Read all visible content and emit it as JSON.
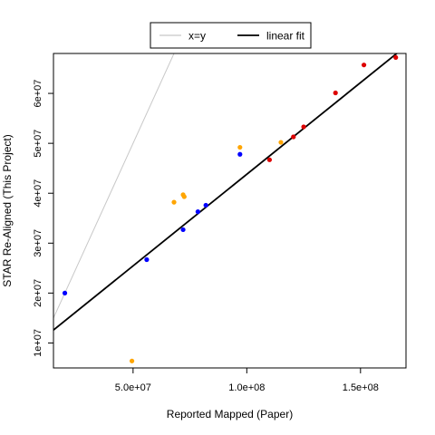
{
  "chart_data": {
    "type": "scatter",
    "title": "",
    "xlabel": "Reported Mapped (Paper)",
    "ylabel": "STAR Re-Aligned (This Project)",
    "xlim": [
      15000000,
      170000000
    ],
    "ylim": [
      5000000,
      68000000
    ],
    "x_ticks": [
      50000000,
      100000000,
      150000000
    ],
    "x_tick_labels": [
      "5.0e+07",
      "1.0e+08",
      "1.5e+08"
    ],
    "y_ticks": [
      10000000,
      20000000,
      30000000,
      40000000,
      50000000,
      60000000
    ],
    "y_tick_labels": [
      "1e+07",
      "2e+07",
      "3e+07",
      "4e+07",
      "5e+07",
      "6e+07"
    ],
    "grid": false,
    "legend": {
      "placement": "top-center",
      "entries": [
        {
          "label": "x=y",
          "color": "#c8c8c8"
        },
        {
          "label": "linear fit",
          "color": "#000000"
        }
      ]
    },
    "lines": [
      {
        "name": "x=y",
        "color": "#c8c8c8",
        "x": [
          15000000,
          69000000
        ],
        "y": [
          15000000,
          69000000
        ]
      },
      {
        "name": "linear fit",
        "color": "#000000",
        "x": [
          15000000,
          170000000
        ],
        "y": [
          12600000,
          69500000
        ]
      }
    ],
    "series": [
      {
        "color": "#0000ff",
        "x": [
          20000000,
          56000000,
          72000000,
          78500000,
          82000000,
          97000000
        ],
        "y": [
          20000000,
          26700000,
          32700000,
          36300000,
          37600000,
          47800000
        ]
      },
      {
        "color": "#ffa500",
        "x": [
          49500000,
          68000000,
          72000000,
          72500000,
          97000000,
          115000000
        ],
        "y": [
          6400000,
          38200000,
          39700000,
          39300000,
          49200000,
          50200000
        ]
      },
      {
        "color": "#dd0000",
        "x": [
          110000000,
          120500000,
          125000000,
          139000000,
          151500000,
          165500000
        ],
        "y": [
          46700000,
          51300000,
          53300000,
          60100000,
          65700000,
          67200000
        ]
      }
    ]
  }
}
